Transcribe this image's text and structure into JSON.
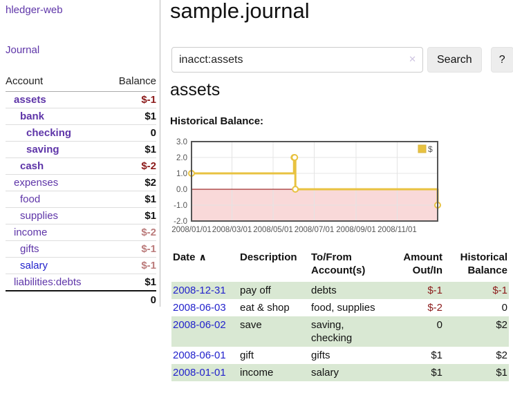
{
  "colors": {
    "purple": "#5e35a8",
    "blue": "#2222cc",
    "negative": "#8b1a1a",
    "negative_soft": "#bb7b7b",
    "stripe_green": "#d9e8d3",
    "chart_gold": "#e8c240"
  },
  "sidebar": {
    "app_title": "hledger-web",
    "nav": {
      "journal": "Journal"
    },
    "accounts": {
      "headers": {
        "account": "Account",
        "balance": "Balance"
      },
      "rows": [
        {
          "account": "assets",
          "balance": "$-1",
          "indent": 1,
          "bold": true,
          "balance_style": "neg"
        },
        {
          "account": "bank",
          "balance": "$1",
          "indent": 2,
          "bold": true,
          "balance_style": "pos"
        },
        {
          "account": "checking",
          "balance": "0",
          "indent": 3,
          "bold": true,
          "balance_style": "pos"
        },
        {
          "account": "saving",
          "balance": "$1",
          "indent": 3,
          "bold": true,
          "balance_style": "pos"
        },
        {
          "account": "cash",
          "balance": "$-2",
          "indent": 2,
          "bold": true,
          "balance_style": "neg"
        },
        {
          "account": "expenses",
          "balance": "$2",
          "indent": 1,
          "bold": false,
          "balance_style": "pos"
        },
        {
          "account": "food",
          "balance": "$1",
          "indent": 2,
          "bold": false,
          "balance_style": "pos"
        },
        {
          "account": "supplies",
          "balance": "$1",
          "indent": 2,
          "bold": false,
          "balance_style": "pos"
        },
        {
          "account": "income",
          "balance": "$-2",
          "indent": 1,
          "bold": false,
          "balance_style": "neg-soft"
        },
        {
          "account": "gifts",
          "balance": "$-1",
          "indent": 2,
          "bold": false,
          "balance_style": "neg-soft"
        },
        {
          "account": "salary",
          "balance": "$-1",
          "indent": 2,
          "bold": false,
          "balance_style": "neg-soft",
          "link_style": "blue"
        },
        {
          "account": "liabilities:debts",
          "balance": "$1",
          "indent": 1,
          "bold": false,
          "balance_style": "pos"
        }
      ],
      "total": "0"
    }
  },
  "header": {
    "title": "sample.journal"
  },
  "search": {
    "value": "inacct:assets",
    "clear_icon": "✕",
    "search_button": "Search",
    "help_button": "?"
  },
  "account_page": {
    "title": "assets",
    "chart_heading": "Historical Balance:"
  },
  "chart_data": {
    "type": "line",
    "title": "Historical Balance:",
    "series": [
      {
        "name": "$",
        "color": "#e8c240",
        "style": "step",
        "points": [
          [
            "2008-01-01",
            1
          ],
          [
            "2008-06-01",
            2
          ],
          [
            "2008-06-02",
            2
          ],
          [
            "2008-06-03",
            0
          ],
          [
            "2008-12-31",
            -1
          ]
        ]
      }
    ],
    "x_range": [
      "2008-01-01",
      "2008-12-31"
    ],
    "ylim": [
      -2.0,
      3.0
    ],
    "y_ticks": [
      3.0,
      2.0,
      1.0,
      0.0,
      -1.0,
      -2.0
    ],
    "x_tick_labels": [
      "2008/01/01",
      "2008/03/01",
      "2008/05/01",
      "2008/07/01",
      "2008/09/01",
      "2008/11/01"
    ],
    "grid": true,
    "legend_position": "top-right",
    "negative_region_fill": "#f9d9d9",
    "zero_line_color": "#8b0000"
  },
  "register": {
    "columns": [
      "Date",
      "Description",
      "To/From Account(s)",
      "Amount Out/In",
      "Historical Balance"
    ],
    "sort_caret": "∧",
    "rows": [
      {
        "date": "2008-12-31",
        "description": "pay off",
        "accounts": "debts",
        "amount": "$-1",
        "balance": "$-1",
        "amount_negative": true,
        "balance_negative": true
      },
      {
        "date": "2008-06-03",
        "description": "eat & shop",
        "accounts": "food, supplies",
        "amount": "$-2",
        "balance": "0",
        "amount_negative": true,
        "balance_negative": false
      },
      {
        "date": "2008-06-02",
        "description": "save",
        "accounts": "saving, checking",
        "amount": "0",
        "balance": "$2",
        "amount_negative": false,
        "balance_negative": false
      },
      {
        "date": "2008-06-01",
        "description": "gift",
        "accounts": "gifts",
        "amount": "$1",
        "balance": "$2",
        "amount_negative": false,
        "balance_negative": false
      },
      {
        "date": "2008-01-01",
        "description": "income",
        "accounts": "salary",
        "amount": "$1",
        "balance": "$1",
        "amount_negative": false,
        "balance_negative": false
      }
    ]
  }
}
